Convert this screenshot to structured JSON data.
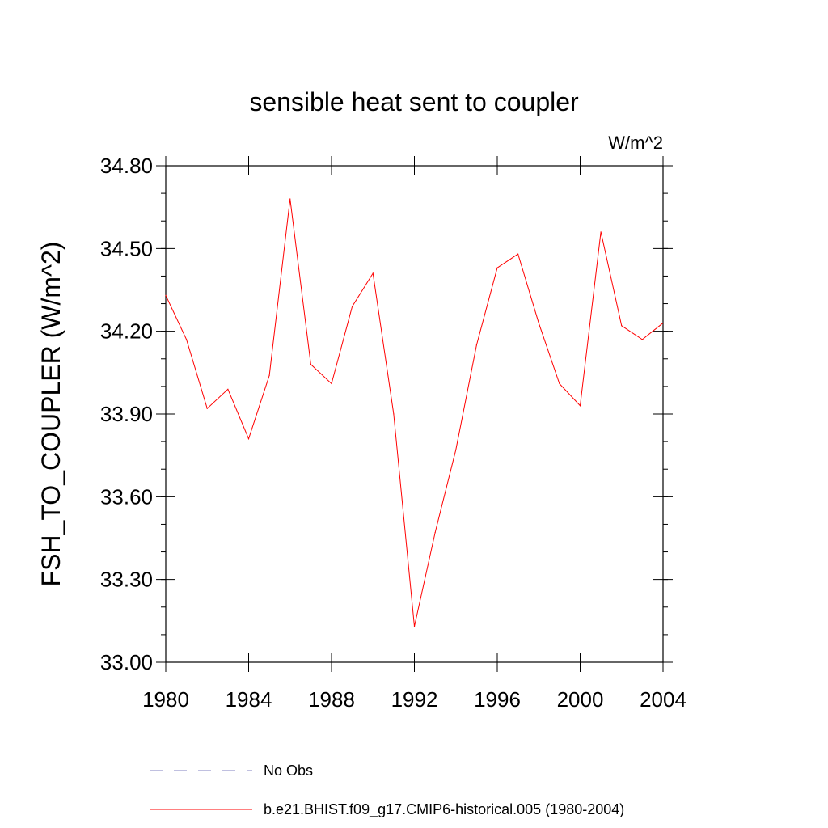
{
  "chart_data": {
    "type": "line",
    "title": "sensible heat sent to coupler",
    "units": "W/m^2",
    "ylabel": "FSH_TO_COUPLER  (W/m^2)",
    "xlabel": "",
    "xlim": [
      1980,
      2004
    ],
    "ylim": [
      33.0,
      34.8
    ],
    "x_ticks": [
      1980,
      1984,
      1988,
      1992,
      1996,
      2000,
      2004
    ],
    "x_tick_labels": [
      "1980",
      "1984",
      "1988",
      "1992",
      "1996",
      "2000",
      "2004"
    ],
    "y_ticks": [
      33.0,
      33.3,
      33.6,
      33.9,
      34.2,
      34.5,
      34.8
    ],
    "y_tick_labels": [
      "33.00",
      "33.30",
      "33.60",
      "33.90",
      "34.20",
      "34.50",
      "34.80"
    ],
    "grid": false,
    "legend_position": "bottom",
    "x": [
      1980,
      1981,
      1982,
      1983,
      1984,
      1985,
      1986,
      1987,
      1988,
      1989,
      1990,
      1991,
      1992,
      1993,
      1994,
      1995,
      1996,
      1997,
      1998,
      1999,
      2000,
      2001,
      2002,
      2003,
      2004
    ],
    "series": [
      {
        "name": "b.e21.BHIST.f09_g17.CMIP6-historical.005 (1980-2004)",
        "color": "#ff0000",
        "style": "solid",
        "values": [
          34.33,
          34.17,
          33.92,
          33.99,
          33.81,
          34.04,
          34.68,
          34.08,
          34.01,
          34.29,
          34.41,
          33.9,
          33.13,
          33.47,
          33.77,
          34.15,
          34.43,
          34.48,
          34.23,
          34.01,
          33.93,
          34.56,
          34.22,
          34.17,
          34.23
        ]
      }
    ],
    "legend": [
      {
        "label": "No Obs",
        "color": "#8080c0",
        "style": "dashed"
      },
      {
        "label": "b.e21.BHIST.f09_g17.CMIP6-historical.005 (1980-2004)",
        "color": "#ff0000",
        "style": "solid"
      }
    ]
  }
}
